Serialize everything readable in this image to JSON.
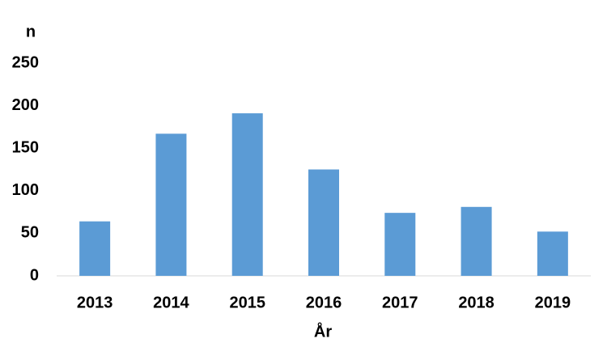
{
  "chart_data": {
    "type": "bar",
    "y_label": "n",
    "x_label": "År",
    "categories": [
      "2013",
      "2014",
      "2015",
      "2016",
      "2017",
      "2018",
      "2019"
    ],
    "values": [
      64,
      167,
      191,
      125,
      74,
      81,
      52
    ],
    "color": "#5b9bd5",
    "ylim": [
      0,
      250
    ],
    "yticks": [
      0,
      50,
      100,
      150,
      200,
      250
    ],
    "grid": false
  }
}
